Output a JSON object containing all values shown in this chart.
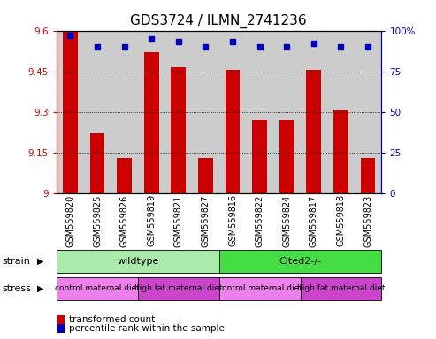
{
  "title": "GDS3724 / ILMN_2741236",
  "samples": [
    "GSM559820",
    "GSM559825",
    "GSM559826",
    "GSM559819",
    "GSM559821",
    "GSM559827",
    "GSM559816",
    "GSM559822",
    "GSM559824",
    "GSM559817",
    "GSM559818",
    "GSM559823"
  ],
  "red_values": [
    9.6,
    9.22,
    9.13,
    9.52,
    9.465,
    9.13,
    9.455,
    9.27,
    9.27,
    9.455,
    9.305,
    9.13
  ],
  "blue_values": [
    97,
    90,
    90,
    95,
    93,
    90,
    93,
    90,
    90,
    92,
    90,
    90
  ],
  "ylim_left": [
    9.0,
    9.6
  ],
  "ylim_right": [
    0,
    100
  ],
  "yticks_left": [
    9.0,
    9.15,
    9.3,
    9.45,
    9.6
  ],
  "yticks_right": [
    0,
    25,
    50,
    75,
    100
  ],
  "ytick_labels_left": [
    "9",
    "9.15",
    "9.3",
    "9.45",
    "9.6"
  ],
  "ytick_labels_right": [
    "0",
    "25",
    "50",
    "75",
    "100%"
  ],
  "hlines": [
    9.15,
    9.3,
    9.45
  ],
  "strain_groups": [
    {
      "label": "wildtype",
      "start": 0,
      "end": 6,
      "color": "#AAEAAA"
    },
    {
      "label": "Cited2-/-",
      "start": 6,
      "end": 12,
      "color": "#44DD44"
    }
  ],
  "stress_groups": [
    {
      "label": "control maternal diet",
      "start": 0,
      "end": 3,
      "color": "#EE80EE"
    },
    {
      "label": "high fat maternal diet",
      "start": 3,
      "end": 6,
      "color": "#CC44CC"
    },
    {
      "label": "control maternal diet",
      "start": 6,
      "end": 9,
      "color": "#EE80EE"
    },
    {
      "label": "high fat maternal diet",
      "start": 9,
      "end": 12,
      "color": "#CC44CC"
    }
  ],
  "bar_color": "#CC0000",
  "dot_color": "#0000BB",
  "bg_color": "#CCCCCC",
  "legend_items": [
    {
      "color": "#CC0000",
      "label": "transformed count"
    },
    {
      "color": "#0000BB",
      "label": "percentile rank within the sample"
    }
  ],
  "title_fontsize": 11,
  "tick_fontsize": 7.5,
  "label_fontsize": 7,
  "anno_fontsize": 8
}
